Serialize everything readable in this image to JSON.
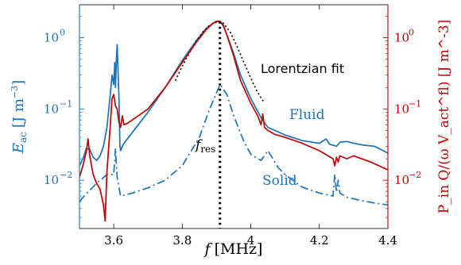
{
  "colors": {
    "fluid": "#1a73b4",
    "solid": "#1a73b4",
    "pq": "#c00000",
    "fit": "#000000",
    "left_axis": "#1a73b4",
    "right_axis": "#c00000"
  },
  "chart_data": {
    "type": "line",
    "x_axis": {
      "label": "f [MHz]",
      "label_symbol": "f",
      "label_unit": "[MHz]",
      "range": [
        3.5,
        4.4
      ],
      "ticks": [
        3.6,
        3.8,
        4.0,
        4.2,
        4.4
      ],
      "tick_labels": [
        "3.6",
        "3.8",
        "4",
        "4.2",
        "4.4"
      ]
    },
    "y_left": {
      "label": "E_ac [J m^-3]",
      "label_symbol": "E",
      "label_sub": "ac",
      "label_unit_open": "[J m",
      "label_unit_exp": "−3",
      "label_unit_close": "]",
      "scale": "log",
      "range": [
        0.0021,
        2.9
      ],
      "ticks": [
        0.01,
        0.1,
        1
      ],
      "tick_labels": [
        "10",
        "10",
        "10"
      ],
      "tick_exps": [
        "−2",
        "−1",
        "0"
      ]
    },
    "y_right": {
      "label": "P_in Q/(ω V_act^fl) [J m^-3]",
      "scale": "log",
      "range": [
        0.0021,
        2.9
      ],
      "ticks": [
        0.01,
        0.1,
        1
      ],
      "tick_labels": [
        "10",
        "10",
        "10"
      ],
      "tick_exps": [
        "−2",
        "−1",
        "0"
      ]
    },
    "annotations": {
      "lorentzian": "Lorentzian fit",
      "fluid": "Fluid",
      "solid": "Solid",
      "fres_symbol": "f",
      "fres_sub": "res"
    },
    "f_res": 3.91,
    "series": [
      {
        "name": "Fluid",
        "axis": "left",
        "style": "solid",
        "x": [
          3.5,
          3.51,
          3.52,
          3.53,
          3.54,
          3.55,
          3.56,
          3.57,
          3.58,
          3.59,
          3.595,
          3.6,
          3.603,
          3.605,
          3.608,
          3.61,
          3.612,
          3.615,
          3.618,
          3.62,
          3.625,
          3.63,
          3.65,
          3.7,
          3.75,
          3.8,
          3.84,
          3.87,
          3.89,
          3.9,
          3.91,
          3.92,
          3.93,
          3.95,
          3.97,
          4.0,
          4.03,
          4.05,
          4.07,
          4.1,
          4.15,
          4.2,
          4.22,
          4.23,
          4.24,
          4.25,
          4.26,
          4.28,
          4.3,
          4.33,
          4.36,
          4.4
        ],
        "y": [
          0.016,
          0.02,
          0.028,
          0.027,
          0.021,
          0.019,
          0.022,
          0.03,
          0.055,
          0.16,
          0.3,
          0.22,
          0.45,
          0.2,
          0.55,
          0.8,
          0.4,
          0.15,
          0.03,
          0.026,
          0.03,
          0.033,
          0.044,
          0.09,
          0.2,
          0.48,
          0.9,
          1.35,
          1.6,
          1.67,
          1.68,
          1.45,
          1.1,
          0.6,
          0.3,
          0.14,
          0.075,
          0.055,
          0.05,
          0.043,
          0.036,
          0.033,
          0.038,
          0.032,
          0.031,
          0.03,
          0.034,
          0.035,
          0.033,
          0.031,
          0.03,
          0.024
        ]
      },
      {
        "name": "Solid",
        "axis": "left",
        "style": "dashdot",
        "x": [
          3.5,
          3.52,
          3.55,
          3.58,
          3.6,
          3.605,
          3.61,
          3.615,
          3.62,
          3.65,
          3.7,
          3.75,
          3.8,
          3.85,
          3.88,
          3.91,
          3.93,
          3.95,
          3.98,
          4.0,
          4.03,
          4.05,
          4.08,
          4.1,
          4.15,
          4.2,
          4.24,
          4.245,
          4.25,
          4.255,
          4.26,
          4.28,
          4.32,
          4.36,
          4.4
        ],
        "y": [
          0.005,
          0.0065,
          0.009,
          0.012,
          0.012,
          0.028,
          0.011,
          0.008,
          0.006,
          0.0065,
          0.0078,
          0.01,
          0.016,
          0.04,
          0.1,
          0.22,
          0.16,
          0.08,
          0.035,
          0.023,
          0.019,
          0.026,
          0.015,
          0.012,
          0.008,
          0.0066,
          0.006,
          0.012,
          0.0068,
          0.01,
          0.0066,
          0.0058,
          0.0052,
          0.0048,
          0.0045
        ]
      },
      {
        "name": "Lorentzian fit",
        "axis": "left",
        "style": "dotted",
        "x": [
          3.78,
          3.8,
          3.82,
          3.84,
          3.86,
          3.88,
          3.9,
          3.91,
          3.92,
          3.94,
          3.96,
          3.98,
          4.0,
          4.02,
          4.04
        ],
        "y": [
          0.25,
          0.4,
          0.6,
          0.88,
          1.2,
          1.5,
          1.66,
          1.68,
          1.6,
          1.2,
          0.75,
          0.45,
          0.27,
          0.17,
          0.12
        ]
      },
      {
        "name": "P_in Q/(ω V_act^fl)",
        "axis": "right",
        "style": "solid",
        "x": [
          3.5,
          3.51,
          3.52,
          3.525,
          3.53,
          3.54,
          3.55,
          3.56,
          3.57,
          3.575,
          3.58,
          3.59,
          3.595,
          3.6,
          3.605,
          3.61,
          3.615,
          3.62,
          3.625,
          3.63,
          3.64,
          3.65,
          3.7,
          3.75,
          3.8,
          3.84,
          3.87,
          3.89,
          3.9,
          3.91,
          3.92,
          3.93,
          3.95,
          3.97,
          4.0,
          4.02,
          4.03,
          4.035,
          4.04,
          4.05,
          4.07,
          4.1,
          4.15,
          4.2,
          4.24,
          4.245,
          4.25,
          4.255,
          4.26,
          4.28,
          4.3,
          4.35,
          4.4
        ],
        "y": [
          0.011,
          0.016,
          0.025,
          0.038,
          0.022,
          0.012,
          0.009,
          0.0075,
          0.0045,
          0.0027,
          0.013,
          0.06,
          0.14,
          0.16,
          0.11,
          0.1,
          0.065,
          0.055,
          0.08,
          0.06,
          0.063,
          0.068,
          0.1,
          0.2,
          0.45,
          0.85,
          1.3,
          1.6,
          1.7,
          1.7,
          1.5,
          1.1,
          0.55,
          0.25,
          0.12,
          0.08,
          0.06,
          0.085,
          0.055,
          0.05,
          0.044,
          0.04,
          0.033,
          0.026,
          0.02,
          0.016,
          0.021,
          0.018,
          0.022,
          0.02,
          0.022,
          0.018,
          0.014
        ]
      }
    ]
  }
}
